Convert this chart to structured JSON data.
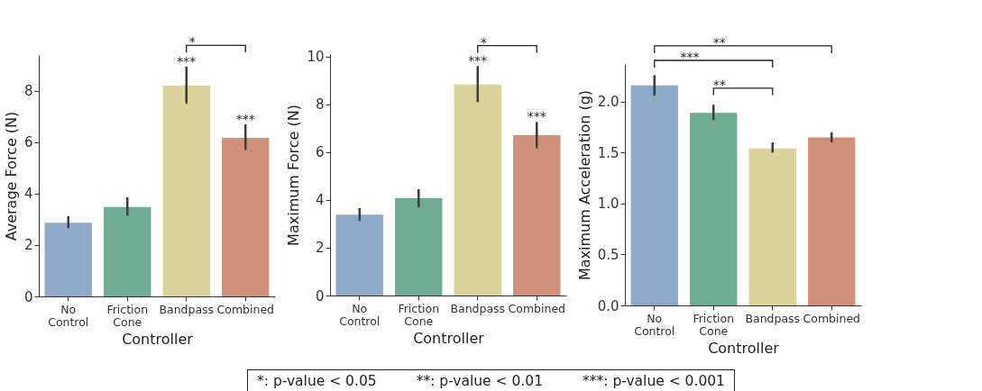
{
  "chart_data": [
    {
      "type": "bar",
      "xlabel": "Controller",
      "ylabel": "Average Force (N)",
      "categories": [
        "No Control",
        "Friction Cone",
        "Bandpass",
        "Combined"
      ],
      "values": [
        2.87,
        3.48,
        8.21,
        6.17
      ],
      "colors": [
        "#8ea8c9",
        "#6fac94",
        "#dcd29c",
        "#d0917b"
      ],
      "errors": [
        [
          2.66,
          3.13
        ],
        [
          3.15,
          3.86
        ],
        [
          7.5,
          8.95
        ],
        [
          5.7,
          6.7
        ]
      ],
      "ylim": [
        0,
        9.4
      ],
      "yticks": [
        0,
        2,
        4,
        6,
        8
      ],
      "annotations": [
        {
          "text": "***",
          "x": "Bandpass",
          "y": 8.95
        },
        {
          "text": "***",
          "x": "Combined",
          "y": 6.7
        },
        "*"
      ]
    },
    {
      "type": "bar",
      "xlabel": "Controller",
      "ylabel": "Maximum Force (N)",
      "categories": [
        "No Control",
        "Friction Cone",
        "Bandpass",
        "Combined"
      ],
      "values": [
        3.38,
        4.08,
        8.83,
        6.71
      ],
      "colors": [
        "#8ea8c9",
        "#6fac94",
        "#dcd29c",
        "#d0917b"
      ],
      "errors": [
        [
          3.12,
          3.66
        ],
        [
          3.7,
          4.45
        ],
        [
          8.09,
          9.6
        ],
        [
          6.16,
          7.26
        ]
      ],
      "ylim": [
        0,
        10.1
      ],
      "yticks": [
        0,
        2,
        4,
        6,
        8,
        10
      ],
      "annotations": [
        {
          "text": "***",
          "x": "Bandpass",
          "y": 9.6
        },
        {
          "text": "***",
          "x": "Combined",
          "y": 7.26
        },
        "*"
      ]
    },
    {
      "type": "bar",
      "xlabel": "Controller",
      "ylabel": "Maximum Acceleration (g)",
      "categories": [
        "No Control",
        "Friction Cone",
        "Bandpass",
        "Combined"
      ],
      "values": [
        2.16,
        1.89,
        1.54,
        1.65
      ],
      "colors": [
        "#8ea8c9",
        "#6fac94",
        "#dcd29c",
        "#d0917b"
      ],
      "errors": [
        [
          2.06,
          2.26
        ],
        [
          1.82,
          1.97
        ],
        [
          1.5,
          1.6
        ],
        [
          1.6,
          1.7
        ]
      ],
      "ylim": [
        0,
        2.37
      ],
      "yticks": [
        {
          "value": 0,
          "label": "0.0"
        },
        0.5,
        {
          "value": 1,
          "label": "1.0"
        },
        1.5,
        {
          "value": 2,
          "label": "2.0"
        }
      ],
      "annotations": [
        "**",
        "***",
        "**"
      ]
    },
    {
      "type": "other",
      "annotations": [
        "*: p-value < 0.05",
        "**: p-value < 0.01",
        "***: p-value < 0.001"
      ]
    }
  ]
}
